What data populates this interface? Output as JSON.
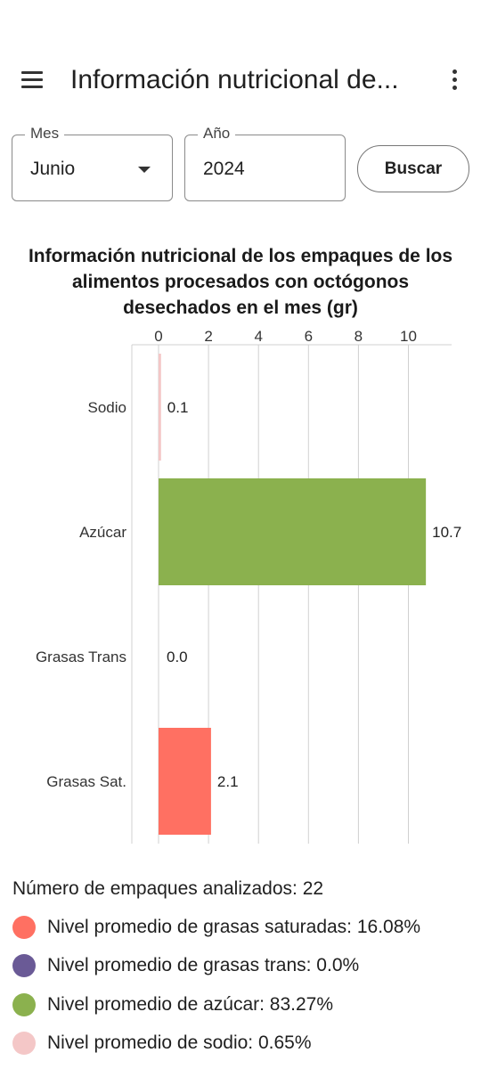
{
  "appbar": {
    "title": "Información nutricional de...",
    "menu_icon": "hamburger-menu-icon",
    "overflow_icon": "more-vertical-icon"
  },
  "filters": {
    "month_label": "Mes",
    "month_value": "Junio",
    "year_label": "Año",
    "year_value": "2024",
    "search_button": "Buscar"
  },
  "chart_data": {
    "type": "bar",
    "orientation": "horizontal",
    "title": "Información nutricional de los empaques de los alimentos procesados con octógonos desechados en el mes (gr)",
    "categories": [
      "Sodio",
      "Azúcar",
      "Grasas Trans",
      "Grasas Sat."
    ],
    "values": [
      0.1,
      10.7,
      0.0,
      2.1
    ],
    "value_labels": [
      "0.1",
      "10.7",
      "0.0",
      "2.1"
    ],
    "colors": [
      "#F4C7C7",
      "#8BB14E",
      "#6A5A96",
      "#FF7062"
    ],
    "xlim": [
      0,
      11
    ],
    "x_ticks": [
      0,
      2,
      4,
      6,
      8,
      10
    ],
    "x_axis_position": "top",
    "grid": true,
    "legend": "none"
  },
  "summary": {
    "packages_analyzed": "Número de empaques analizados: 22"
  },
  "legend": [
    {
      "color": "#FF7062",
      "text": "Nivel promedio de grasas saturadas: 16.08%"
    },
    {
      "color": "#6A5A96",
      "text": "Nivel promedio de grasas trans: 0.0%"
    },
    {
      "color": "#8BB14E",
      "text": "Nivel promedio de azúcar: 83.27%"
    },
    {
      "color": "#F4C7C7",
      "text": "Nivel promedio de sodio: 0.65%"
    }
  ]
}
